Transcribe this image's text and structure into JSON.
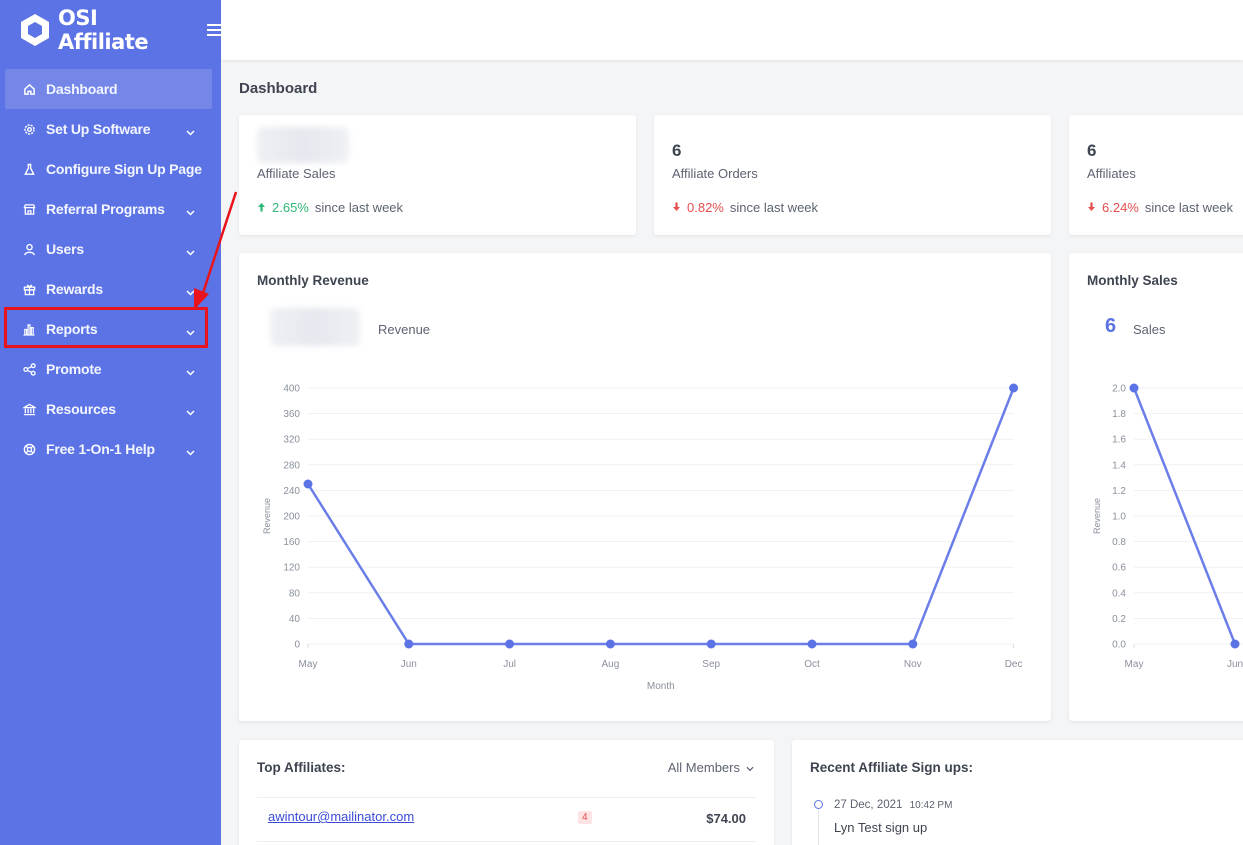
{
  "brand": {
    "name": "OSI Affiliate"
  },
  "sidebar": {
    "items": [
      {
        "label": "Dashboard",
        "icon": "home-icon"
      },
      {
        "label": "Set Up Software",
        "icon": "gear-icon"
      },
      {
        "label": "Configure Sign Up Page",
        "icon": "flask-icon"
      },
      {
        "label": "Referral Programs",
        "icon": "store-icon"
      },
      {
        "label": "Users",
        "icon": "user-icon"
      },
      {
        "label": "Rewards",
        "icon": "gift-icon"
      },
      {
        "label": "Reports",
        "icon": "bar-chart-icon"
      },
      {
        "label": "Promote",
        "icon": "share-icon"
      },
      {
        "label": "Resources",
        "icon": "bank-icon"
      },
      {
        "label": "Free 1-On-1 Help",
        "icon": "lifebuoy-icon"
      }
    ]
  },
  "page": {
    "title": "Dashboard"
  },
  "stats": [
    {
      "value": "",
      "label": "Affiliate Sales",
      "delta": "2.65%",
      "direction": "up",
      "suffix": "since last week"
    },
    {
      "value": "6",
      "label": "Affiliate Orders",
      "delta": "0.82%",
      "direction": "down",
      "suffix": "since last week"
    },
    {
      "value": "6",
      "label": "Affiliates",
      "delta": "6.24%",
      "direction": "down",
      "suffix": "since last week"
    }
  ],
  "revenue_card": {
    "title": "Monthly Revenue",
    "legend": "Revenue"
  },
  "sales_card": {
    "title": "Monthly Sales",
    "total": "6",
    "legend": "Sales"
  },
  "top_affiliates": {
    "title": "Top Affiliates:",
    "filter": "All Members",
    "rows": [
      {
        "email": "awintour@mailinator.com",
        "count": "4",
        "amount": "$74.00"
      }
    ]
  },
  "signups": {
    "title": "Recent Affiliate Sign ups:",
    "items": [
      {
        "date": "27 Dec, 2021",
        "time": "10:42 PM",
        "text": "Lyn Test sign up"
      }
    ]
  },
  "colors": {
    "sidebar": "#5c73e6",
    "line": "#6b7ee8",
    "highlight": "#e8131b"
  },
  "chart_data": [
    {
      "type": "line",
      "title": "Monthly Revenue",
      "x": [
        "May",
        "Jun",
        "Jul",
        "Aug",
        "Sep",
        "Oct",
        "Nov",
        "Dec"
      ],
      "series": [
        {
          "name": "Revenue",
          "values": [
            250,
            0,
            0,
            0,
            0,
            0,
            0,
            400
          ]
        }
      ],
      "xlabel": "Month",
      "ylabel": "Revenue",
      "ylim": [
        0,
        400
      ],
      "yticks": [
        0,
        40,
        80,
        120,
        160,
        200,
        240,
        280,
        320,
        360,
        400
      ]
    },
    {
      "type": "line",
      "title": "Monthly Sales",
      "x": [
        "May",
        "Jun"
      ],
      "series": [
        {
          "name": "Sales",
          "values": [
            2,
            0
          ]
        }
      ],
      "ylabel": "Revenue",
      "ylim": [
        0,
        2
      ],
      "yticks": [
        "0.0",
        "0.2",
        "0.4",
        "0.6",
        "0.8",
        "1.0",
        "1.2",
        "1.4",
        "1.6",
        "1.8",
        "2.0"
      ]
    }
  ]
}
